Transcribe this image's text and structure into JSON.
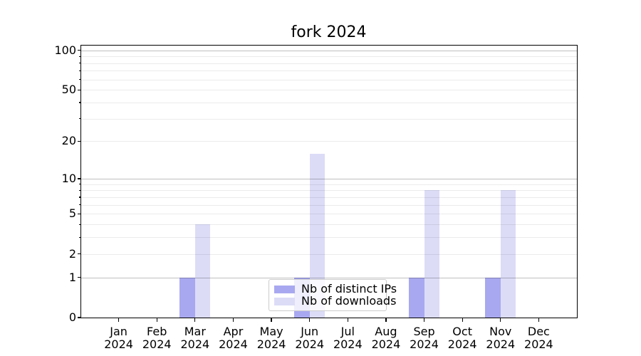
{
  "chart_data": {
    "type": "bar",
    "title": "fork 2024",
    "categories": [
      "Jan",
      "Feb",
      "Mar",
      "Apr",
      "May",
      "Jun",
      "Jul",
      "Aug",
      "Sep",
      "Oct",
      "Nov",
      "Dec"
    ],
    "year_label": "2024",
    "series": [
      {
        "name": "Nb of distinct IPs",
        "color": "#a8a8f0",
        "values": [
          0,
          0,
          1,
          0,
          0,
          1,
          0,
          0,
          1,
          0,
          1,
          0
        ]
      },
      {
        "name": "Nb of downloads",
        "color": "#dcdcf7",
        "values": [
          0,
          0,
          4,
          0,
          0,
          16,
          0,
          0,
          8,
          0,
          8,
          0
        ]
      }
    ],
    "yscale": "log1p",
    "ylim": [
      0,
      110
    ],
    "yticks_major": [
      0,
      1,
      2,
      5,
      10,
      20,
      50,
      100
    ],
    "yticks_minor": [
      3,
      4,
      6,
      7,
      8,
      9,
      30,
      40,
      60,
      70,
      80,
      90
    ],
    "gridlines_emphasized": [
      1,
      10,
      100
    ],
    "grid": true,
    "legend_position": "lower center",
    "xlabel": "",
    "ylabel": ""
  },
  "colors": {
    "background": "#ffffff",
    "spine": "#000000",
    "text": "#000000",
    "bar_distinct_ips": "#a8a8f0",
    "bar_downloads": "#dcdcf7",
    "legend_border": "#cccccc"
  }
}
